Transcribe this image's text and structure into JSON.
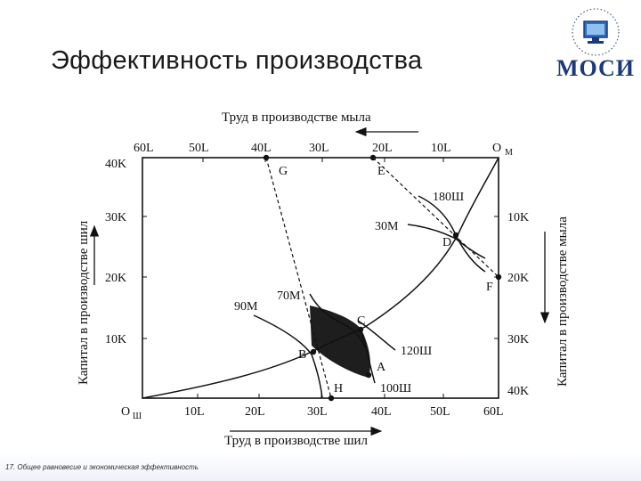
{
  "slide": {
    "title": "Эффективность производства",
    "logo_text": "МОСИ",
    "footer": "17. Общее равновесие и экономическая эффективность"
  },
  "diagram": {
    "top_axis_title": "Труд в производстве мыла",
    "bottom_axis_title": "Труд в производстве шил",
    "left_axis_title": "Капитал в производстве шил",
    "right_axis_title": "Капитал в производстве мыла",
    "top_ticks": [
      "60L",
      "50L",
      "40L",
      "30L",
      "20L",
      "10L"
    ],
    "top_origin": "O",
    "top_origin_sub": "M",
    "bottom_origin": "O",
    "bottom_origin_sub": "Ш",
    "bottom_ticks": [
      "10L",
      "20L",
      "30L",
      "40L",
      "50L",
      "60L"
    ],
    "left_ticks": [
      "40K",
      "30K",
      "20K",
      "10K"
    ],
    "right_ticks": [
      "10K",
      "20K",
      "30K",
      "40K"
    ],
    "points": {
      "G": "G",
      "E": "E",
      "D": "D",
      "F": "F",
      "C": "C",
      "B": "B",
      "A": "A",
      "H": "H"
    },
    "curves": {
      "m90": "90M",
      "m70": "70M",
      "m30": "30M",
      "s180": "180Ш",
      "s120": "120Ш",
      "s100": "100Ш"
    }
  }
}
